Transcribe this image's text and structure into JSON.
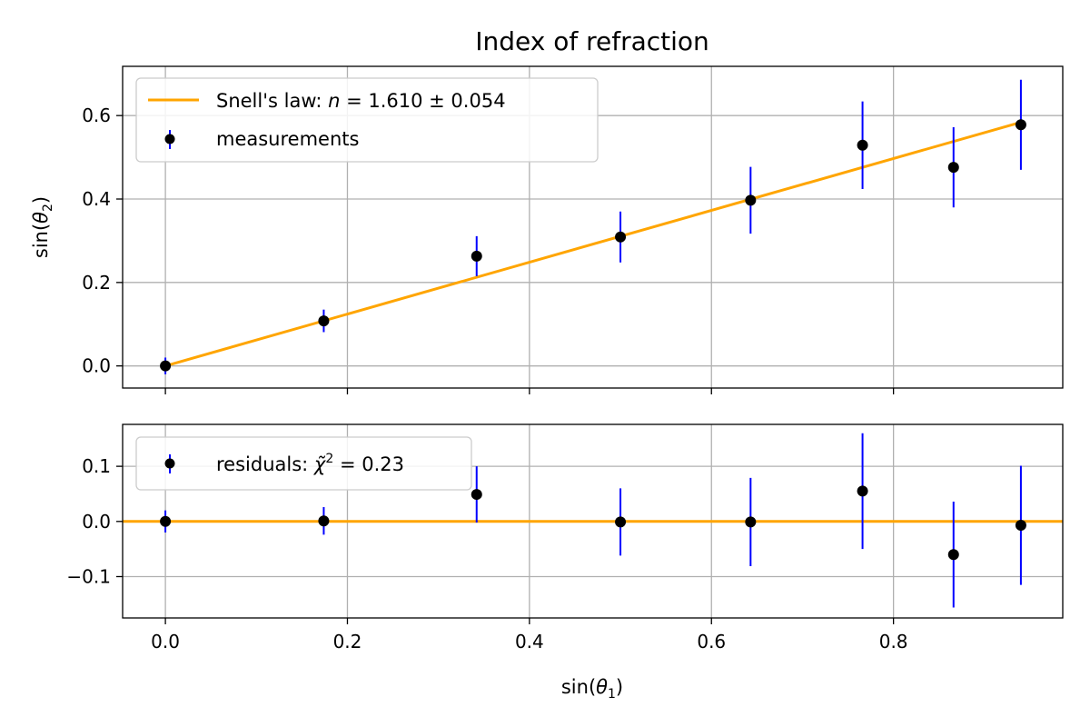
{
  "chart_data": [
    {
      "type": "scatter",
      "title": "Index of refraction",
      "xlabel": "",
      "ylabel": "sin(θ2)",
      "xlim": [
        -0.047,
        0.986
      ],
      "ylim": [
        -0.053,
        0.718
      ],
      "grid": true,
      "legend_position": "top-left",
      "x_ticks": [
        "0.0",
        "0.2",
        "0.4",
        "0.6",
        "0.8"
      ],
      "y_ticks": [
        "0.0",
        "0.2",
        "0.4",
        "0.6"
      ],
      "series": [
        {
          "name": "Snell's law: n = 1.610 ± 0.054",
          "kind": "line",
          "color": "#ffa500",
          "x": [
            0.0,
            0.94
          ],
          "y": [
            0.0,
            0.584
          ]
        },
        {
          "name": "measurements",
          "kind": "errorbar",
          "marker_color": "#000000",
          "error_color": "#0000ff",
          "x": [
            0.0,
            0.174,
            0.342,
            0.5,
            0.643,
            0.766,
            0.866,
            0.94
          ],
          "y": [
            0.0,
            0.108,
            0.263,
            0.309,
            0.397,
            0.529,
            0.476,
            0.578
          ],
          "yerr": [
            0.02,
            0.027,
            0.048,
            0.061,
            0.08,
            0.105,
            0.096,
            0.108
          ]
        }
      ]
    },
    {
      "type": "scatter",
      "title": "",
      "xlabel": "sin(θ1)",
      "ylabel": "",
      "xlim": [
        -0.047,
        0.986
      ],
      "ylim": [
        -0.175,
        0.176
      ],
      "grid": true,
      "legend_position": "top-left",
      "x_ticks": [
        "0.0",
        "0.2",
        "0.4",
        "0.6",
        "0.8"
      ],
      "y_ticks": [
        "0.1",
        "0.0",
        "−0.1"
      ],
      "series": [
        {
          "name": "residuals: χ̃² = 0.23",
          "kind": "errorbar",
          "marker_color": "#000000",
          "error_color": "#0000ff",
          "x": [
            0.0,
            0.174,
            0.342,
            0.5,
            0.643,
            0.766,
            0.866,
            0.94
          ],
          "y": [
            0.0,
            0.001,
            0.049,
            -0.001,
            -0.001,
            0.055,
            -0.06,
            -0.007
          ],
          "yerr": [
            0.02,
            0.025,
            0.051,
            0.061,
            0.08,
            0.105,
            0.096,
            0.108
          ]
        },
        {
          "name": "",
          "kind": "hline",
          "color": "#ffa500",
          "y": 0.0
        }
      ]
    }
  ]
}
